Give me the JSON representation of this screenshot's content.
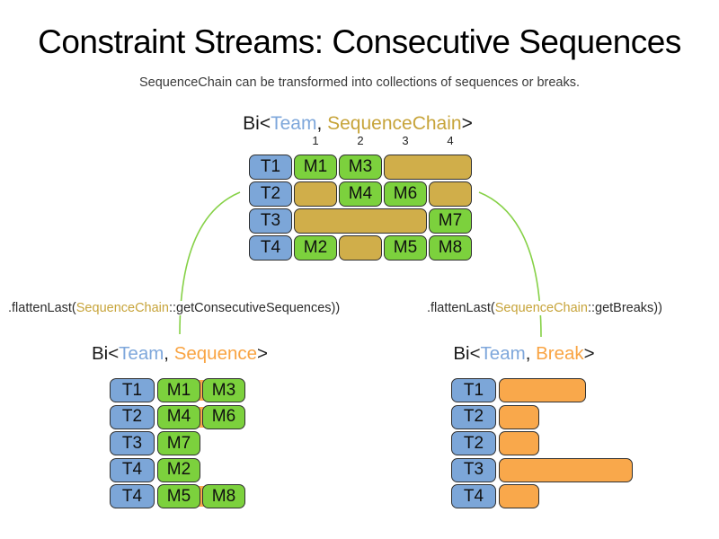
{
  "title": "Constraint Streams: Consecutive Sequences",
  "subtitle": "SequenceChain can be transformed into collections of sequences or breaks.",
  "colors": {
    "team_fill": "#7CA6D8",
    "sequence_fill": "#7CD13D",
    "chain_fill": "#D0AE4A",
    "break_fill": "#F9A84B",
    "cell_border": "#303030",
    "team_text": "#7EA7DB",
    "gold_text": "#C7A43A",
    "orange_text": "#F9A443",
    "arrow_green": "#86D147"
  },
  "source": {
    "heading": {
      "prefix": "Bi<",
      "team": "Team",
      "separator": ", ",
      "type_name": "SequenceChain",
      "suffix": ">"
    },
    "column_numbers": [
      "1",
      "2",
      "3",
      "4"
    ],
    "rows": [
      {
        "team": "T1",
        "cells": [
          {
            "kind": "sequence",
            "label": "M1",
            "span": 1
          },
          {
            "kind": "sequence",
            "label": "M3",
            "span": 1
          },
          {
            "kind": "chain",
            "label": "",
            "span": 2
          }
        ]
      },
      {
        "team": "T2",
        "cells": [
          {
            "kind": "chain",
            "label": "",
            "span": 1
          },
          {
            "kind": "sequence",
            "label": "M4",
            "span": 1
          },
          {
            "kind": "sequence",
            "label": "M6",
            "span": 1
          },
          {
            "kind": "chain",
            "label": "",
            "span": 1
          }
        ]
      },
      {
        "team": "T3",
        "cells": [
          {
            "kind": "chain",
            "label": "",
            "span": 3
          },
          {
            "kind": "sequence",
            "label": "M7",
            "span": 1
          }
        ]
      },
      {
        "team": "T4",
        "cells": [
          {
            "kind": "sequence",
            "label": "M2",
            "span": 1
          },
          {
            "kind": "chain",
            "label": "",
            "span": 1
          },
          {
            "kind": "sequence",
            "label": "M5",
            "span": 1
          },
          {
            "kind": "sequence",
            "label": "M8",
            "span": 1
          }
        ]
      }
    ]
  },
  "transforms": {
    "left": {
      "pre": ".flattenLast(",
      "type_name": "SequenceChain",
      "post": "::getConsecutiveSequences))"
    },
    "right": {
      "pre": ".flattenLast(",
      "type_name": "SequenceChain",
      "post": "::getBreaks))"
    }
  },
  "sequences": {
    "heading": {
      "prefix": "Bi<",
      "team": "Team",
      "separator": ", ",
      "type_name": "Sequence",
      "suffix": ">"
    },
    "rows": [
      {
        "team": "T1",
        "cells": [
          "M1",
          "M3"
        ]
      },
      {
        "team": "T2",
        "cells": [
          "M4",
          "M6"
        ]
      },
      {
        "team": "T3",
        "cells": [
          "M7"
        ]
      },
      {
        "team": "T4",
        "cells": [
          "M2"
        ]
      },
      {
        "team": "T4",
        "cells": [
          "M5",
          "M8"
        ]
      }
    ]
  },
  "breaks": {
    "heading": {
      "prefix": "Bi<",
      "team": "Team",
      "separator": ", ",
      "type_name": "Break",
      "suffix": ">"
    },
    "rows": [
      {
        "team": "T1",
        "length_units": 2
      },
      {
        "team": "T2",
        "length_units": 1
      },
      {
        "team": "T2",
        "length_units": 1
      },
      {
        "team": "T3",
        "length_units": 3
      },
      {
        "team": "T4",
        "length_units": 1
      }
    ]
  }
}
